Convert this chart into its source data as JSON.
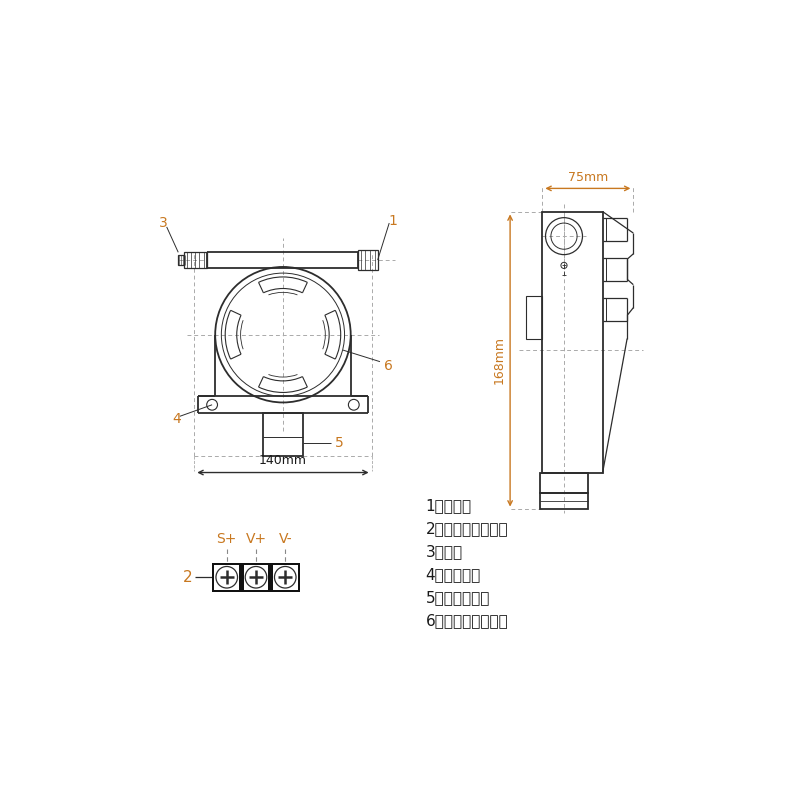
{
  "bg_color": "#ffffff",
  "line_color": "#2d2d2d",
  "dim_color": "#c87820",
  "label_color": "#c87820",
  "text_color": "#1a1a1a",
  "annotations": [
    "1、入线孔",
    "2、变送器接线端子",
    "3、堵头",
    "4、安装支架",
    "5、气敏传感器",
    "6、传感器接线端子"
  ],
  "dim_140": "140mm",
  "dim_75": "75mm",
  "dim_168": "168mm",
  "terminal_labels": [
    "S+",
    "V+",
    "V-"
  ]
}
